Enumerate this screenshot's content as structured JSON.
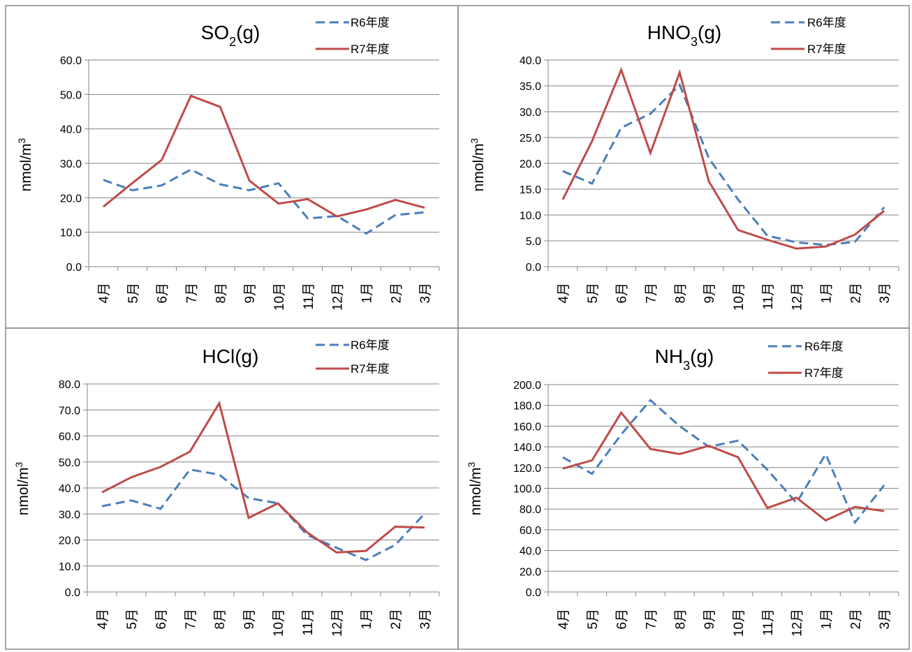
{
  "colors": {
    "r6": "#4a7ebb",
    "r7": "#be4b48",
    "grid": "#858585"
  },
  "chart_data": [
    {
      "type": "line",
      "title": "SO",
      "title_sub": "2",
      "title_tail": "(g)",
      "ylabel": "nmol/m",
      "ylabel_sup": "3",
      "categories": [
        "4月",
        "5月",
        "6月",
        "7月",
        "8月",
        "9月",
        "10月",
        "11月",
        "12月",
        "1月",
        "2月",
        "3月"
      ],
      "ylim": [
        0,
        60
      ],
      "yticks": [
        "0.0",
        "10.0",
        "20.0",
        "30.0",
        "40.0",
        "50.0",
        "60.0"
      ],
      "series": [
        {
          "name": "R6年度",
          "values": [
            25.2,
            22.2,
            23.6,
            28.2,
            23.9,
            22.2,
            24.2,
            14.0,
            14.7,
            9.6,
            15.0,
            15.8
          ]
        },
        {
          "name": "R7年度",
          "values": [
            17.4,
            24.3,
            31.0,
            49.6,
            46.4,
            25.0,
            18.3,
            19.6,
            14.6,
            16.6,
            19.4,
            17.1
          ]
        }
      ],
      "legend": "top-right"
    },
    {
      "type": "line",
      "title": "HNO",
      "title_sub": "3",
      "title_tail": "(g)",
      "ylabel": "nmol/m",
      "ylabel_sup": "3",
      "categories": [
        "4月",
        "5月",
        "6月",
        "7月",
        "8月",
        "9月",
        "10月",
        "11月",
        "12月",
        "1月",
        "2月",
        "3月"
      ],
      "ylim": [
        0,
        40
      ],
      "yticks": [
        "0.0",
        "5.0",
        "10.0",
        "15.0",
        "20.0",
        "25.0",
        "30.0",
        "35.0",
        "40.0"
      ],
      "series": [
        {
          "name": "R6年度",
          "values": [
            18.5,
            16.1,
            26.9,
            29.6,
            35.2,
            21.0,
            13.0,
            6.0,
            4.7,
            4.2,
            4.8,
            11.5
          ]
        },
        {
          "name": "R7年度",
          "values": [
            13.0,
            24.3,
            38.1,
            22.0,
            37.6,
            16.5,
            7.1,
            5.2,
            3.5,
            3.9,
            6.2,
            10.8
          ]
        }
      ],
      "legend": "top-right"
    },
    {
      "type": "line",
      "title": "HCl(g)",
      "title_sub": "",
      "title_tail": "",
      "ylabel": "nmol/m",
      "ylabel_sup": "3",
      "categories": [
        "4月",
        "5月",
        "6月",
        "7月",
        "8月",
        "9月",
        "10月",
        "11月",
        "12月",
        "1月",
        "2月",
        "3月"
      ],
      "ylim": [
        0,
        80
      ],
      "yticks": [
        "0.0",
        "10.0",
        "20.0",
        "30.0",
        "40.0",
        "50.0",
        "60.0",
        "70.0",
        "80.0"
      ],
      "series": [
        {
          "name": "R6年度",
          "values": [
            33.0,
            35.2,
            32.0,
            47.1,
            45.1,
            36.1,
            34.1,
            21.9,
            17.0,
            12.3,
            18.1,
            30.1
          ]
        },
        {
          "name": "R7年度",
          "values": [
            38.3,
            44.1,
            48.1,
            54.0,
            72.6,
            28.5,
            34.1,
            22.9,
            15.2,
            15.8,
            25.1,
            24.8
          ]
        }
      ],
      "legend": "top-right"
    },
    {
      "type": "line",
      "title": "NH",
      "title_sub": "3",
      "title_tail": "(g)",
      "ylabel": "nmol/m",
      "ylabel_sup": "3",
      "categories": [
        "4月",
        "5月",
        "6月",
        "7月",
        "8月",
        "9月",
        "10月",
        "11月",
        "12月",
        "1月",
        "2月",
        "3月"
      ],
      "ylim": [
        0,
        200
      ],
      "yticks": [
        "0.0",
        "20.0",
        "40.0",
        "60.0",
        "80.0",
        "100.0",
        "120.0",
        "140.0",
        "160.0",
        "180.0",
        "200.0"
      ],
      "series": [
        {
          "name": "R6年度",
          "values": [
            130,
            114,
            152,
            185,
            160,
            140,
            146,
            118,
            86,
            133,
            67,
            103
          ]
        },
        {
          "name": "R7年度",
          "values": [
            119,
            127,
            173,
            138,
            133,
            141,
            130,
            81,
            91,
            69,
            82,
            78
          ]
        }
      ],
      "legend": "top-right"
    }
  ]
}
